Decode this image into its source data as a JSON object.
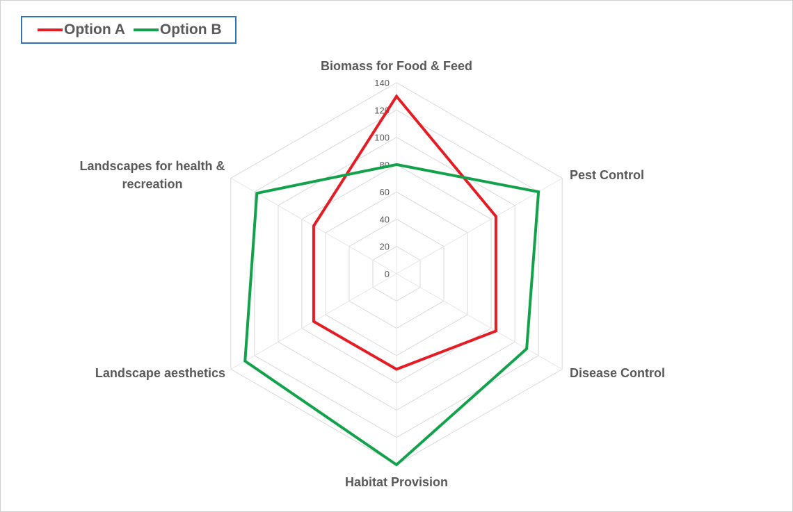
{
  "chart_data": {
    "type": "radar",
    "categories": [
      "Biomass for Food & Feed",
      "Pest Control",
      "Disease Control",
      "Habitat Provision",
      "Landscape aesthetics",
      "Landscapes for health & recreation"
    ],
    "category_lines": [
      [
        "Biomass for Food & Feed"
      ],
      [
        "Pest Control"
      ],
      [
        "Disease Control"
      ],
      [
        "Habitat Provision"
      ],
      [
        "Landscape aesthetics"
      ],
      [
        "Landscapes for health &",
        "recreation"
      ]
    ],
    "series": [
      {
        "name": "Option A",
        "color": "#e51c23",
        "values": [
          130,
          84,
          84,
          70,
          70,
          70
        ]
      },
      {
        "name": "Option B",
        "color": "#12a24b",
        "values": [
          80,
          120,
          110,
          140,
          128,
          118
        ]
      }
    ],
    "rlim": [
      0,
      140
    ],
    "ticks": [
      0,
      20,
      40,
      60,
      80,
      100,
      120,
      140
    ],
    "tick_labels": [
      "0",
      "20",
      "40",
      "60",
      "80",
      "100",
      "120",
      "140"
    ],
    "grid": true,
    "legend_position": "top-left"
  }
}
